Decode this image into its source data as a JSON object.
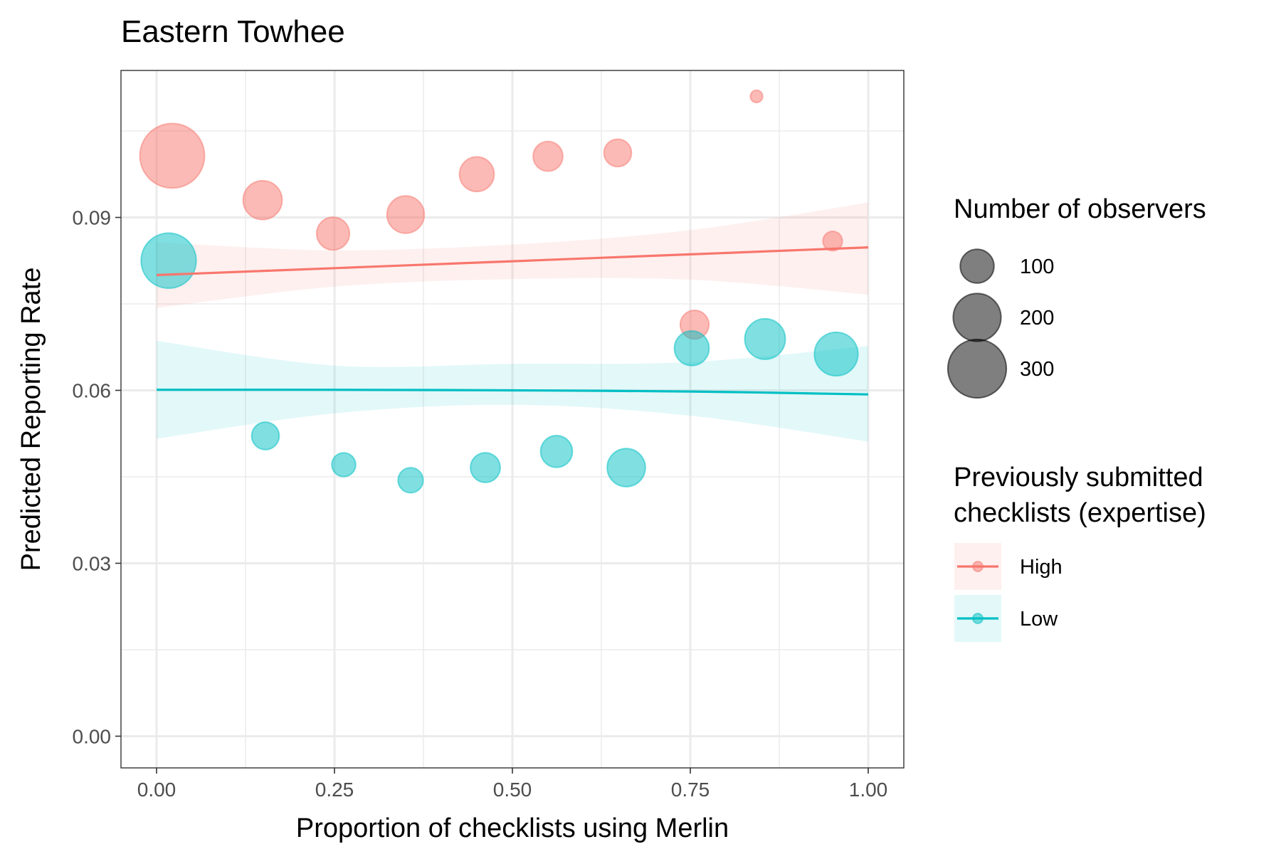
{
  "chart_data": {
    "type": "scatter",
    "title": "Eastern Towhee",
    "xlabel": "Proportion of checklists using Merlin",
    "ylabel": "Predicted Reporting Rate",
    "xlim": [
      -0.05,
      1.05
    ],
    "ylim": [
      -0.0055,
      0.1155
    ],
    "x_ticks": [
      0.0,
      0.25,
      0.5,
      0.75,
      1.0
    ],
    "x_tick_labels": [
      "0.00",
      "0.25",
      "0.50",
      "0.75",
      "1.00"
    ],
    "y_ticks": [
      0.0,
      0.03,
      0.06,
      0.09
    ],
    "y_tick_labels": [
      "0.00",
      "0.03",
      "0.06",
      "0.09"
    ],
    "grid": true,
    "colors": {
      "High": "#F8766D",
      "Low": "#00BFC4"
    },
    "series": [
      {
        "name": "High",
        "points": [
          {
            "x": 0.022,
            "y": 0.1007,
            "n": 330
          },
          {
            "x": 0.149,
            "y": 0.093,
            "n": 120
          },
          {
            "x": 0.248,
            "y": 0.0872,
            "n": 85
          },
          {
            "x": 0.35,
            "y": 0.0905,
            "n": 110
          },
          {
            "x": 0.45,
            "y": 0.0975,
            "n": 95
          },
          {
            "x": 0.55,
            "y": 0.1006,
            "n": 70
          },
          {
            "x": 0.648,
            "y": 0.1012,
            "n": 60
          },
          {
            "x": 0.756,
            "y": 0.0714,
            "n": 65
          },
          {
            "x": 0.843,
            "y": 0.111,
            "n": 12
          },
          {
            "x": 0.95,
            "y": 0.0859,
            "n": 30
          }
        ],
        "fit": {
          "x": [
            0.0,
            0.25,
            0.5,
            0.75,
            1.0
          ],
          "y": [
            0.08,
            0.0812,
            0.0824,
            0.0836,
            0.0848
          ]
        },
        "ci_lower": [
          0.0743,
          0.078,
          0.0793,
          0.0792,
          0.0766
        ],
        "ci_upper": [
          0.0857,
          0.0843,
          0.0853,
          0.0878,
          0.0926
        ]
      },
      {
        "name": "Low",
        "points": [
          {
            "x": 0.017,
            "y": 0.0825,
            "n": 240
          },
          {
            "x": 0.153,
            "y": 0.0521,
            "n": 60
          },
          {
            "x": 0.263,
            "y": 0.0471,
            "n": 45
          },
          {
            "x": 0.357,
            "y": 0.0444,
            "n": 50
          },
          {
            "x": 0.462,
            "y": 0.0466,
            "n": 70
          },
          {
            "x": 0.562,
            "y": 0.0494,
            "n": 80
          },
          {
            "x": 0.66,
            "y": 0.0466,
            "n": 115
          },
          {
            "x": 0.752,
            "y": 0.0673,
            "n": 95
          },
          {
            "x": 0.855,
            "y": 0.0689,
            "n": 130
          },
          {
            "x": 0.955,
            "y": 0.0663,
            "n": 150
          }
        ],
        "fit": {
          "x": [
            0.0,
            0.25,
            0.5,
            0.75,
            1.0
          ],
          "y": [
            0.0601,
            0.0601,
            0.06,
            0.0598,
            0.0593
          ]
        },
        "ci_lower": [
          0.0516,
          0.056,
          0.0575,
          0.0556,
          0.0511
        ],
        "ci_upper": [
          0.0686,
          0.0643,
          0.0646,
          0.0649,
          0.0677
        ]
      }
    ],
    "size_legend": {
      "title": "Number of observers",
      "values": [
        100,
        200,
        300
      ],
      "labels": [
        "100",
        "200",
        "300"
      ]
    },
    "color_legend": {
      "title_line1": "Previously submitted",
      "title_line2": "checklists (expertise)",
      "entries": [
        "High",
        "Low"
      ]
    }
  }
}
